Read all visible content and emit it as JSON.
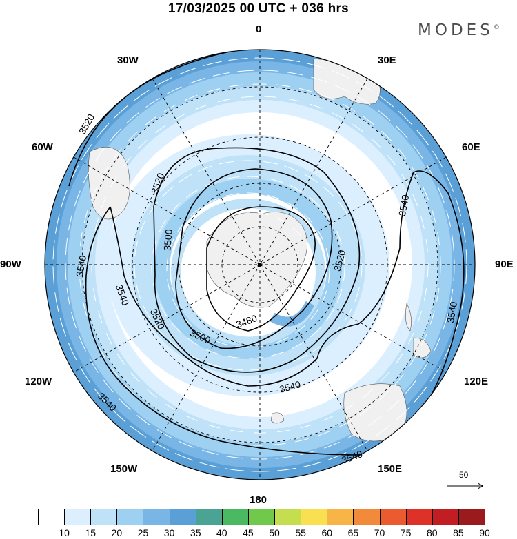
{
  "title": "17/03/2025  00 UTC  + 036 hrs",
  "brand": "MODES",
  "brand_mark": "©",
  "longitude_labels": {
    "top": "0",
    "top_right": "30E",
    "right_upper": "60E",
    "right": "90E",
    "right_lower": "120E",
    "bottom_right": "150E",
    "bottom": "180",
    "bottom_left": "150W",
    "left_lower": "120W",
    "left": "90W",
    "left_upper": "60W",
    "top_left": "30W"
  },
  "contour_labels": [
    "3520",
    "3520",
    "3500",
    "3540",
    "3540",
    "3540",
    "3540",
    "3520",
    "3520",
    "3500",
    "3480",
    "3540",
    "3540",
    "3540"
  ],
  "reference_vector": {
    "label": "50"
  },
  "colorbar": {
    "ticks": [
      "10",
      "15",
      "20",
      "25",
      "30",
      "35",
      "40",
      "45",
      "50",
      "55",
      "60",
      "65",
      "70",
      "75",
      "80",
      "85",
      "90"
    ],
    "colors": [
      "#ffffff",
      "#dcefff",
      "#bfe2f9",
      "#9ed0f2",
      "#79b6e6",
      "#5a9fd6",
      "#4ba393",
      "#4bb862",
      "#70c94a",
      "#c4de4f",
      "#f9e050",
      "#f7b547",
      "#f28a3c",
      "#ec5b2f",
      "#de3228",
      "#c21d22",
      "#9a1a1d"
    ]
  }
}
